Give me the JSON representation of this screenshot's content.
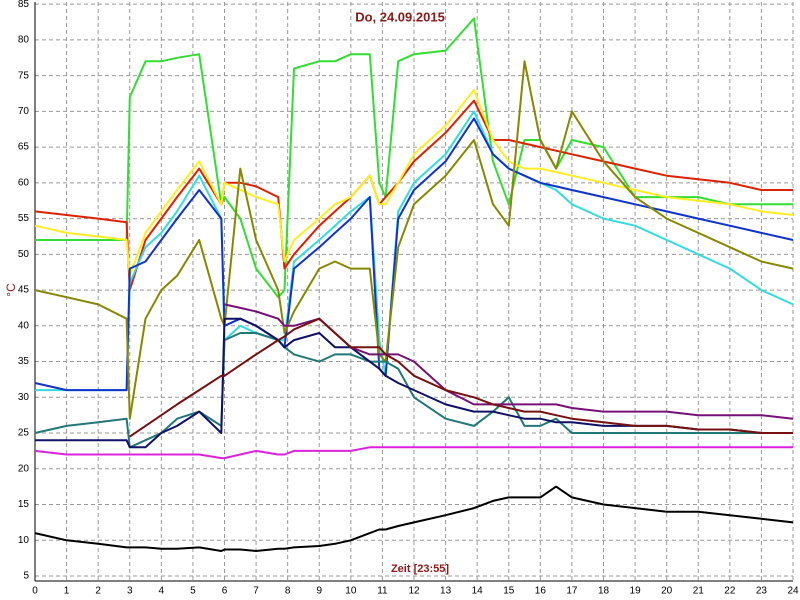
{
  "chart_data": {
    "type": "line",
    "title": "Do, 24.09.2015",
    "x_label": "Zeit [23:55]",
    "y_label": "°C",
    "x": [
      0,
      1,
      2,
      2.9,
      3,
      3.5,
      4,
      4.5,
      5.2,
      5.9,
      6,
      6.5,
      7,
      7.7,
      7.9,
      8.2,
      9,
      9.5,
      10,
      10.6,
      10.9,
      11.1,
      11.5,
      12,
      13,
      13.9,
      14.5,
      15,
      15.5,
      16,
      16.5,
      17,
      18,
      19,
      20,
      21,
      22,
      23,
      24
    ],
    "xlim": [
      0,
      24
    ],
    "xticks": [
      0,
      1,
      2,
      3,
      4,
      5,
      6,
      7,
      8,
      9,
      10,
      11,
      12,
      13,
      14,
      15,
      16,
      17,
      18,
      19,
      20,
      21,
      22,
      23,
      24
    ],
    "ylim": [
      4.3,
      85.3
    ],
    "yticks": [
      5,
      10,
      15,
      20,
      25,
      30,
      35,
      40,
      45,
      50,
      55,
      60,
      65,
      70,
      75,
      80,
      85
    ],
    "grid": true,
    "series": [
      {
        "color": "#33dd33",
        "values": [
          52,
          52,
          52,
          52,
          72,
          77,
          77,
          77.5,
          78,
          57,
          58,
          55,
          48,
          44,
          45,
          76,
          77,
          77,
          78,
          78,
          60,
          58,
          77,
          78,
          78.5,
          83,
          63,
          57,
          66,
          66,
          62,
          66,
          65,
          58,
          58,
          58,
          57,
          57,
          57
        ]
      },
      {
        "color": "#dd2200",
        "values": [
          56,
          55.5,
          55,
          54.5,
          45,
          52,
          55,
          58,
          62,
          57,
          60,
          60,
          59.5,
          58,
          48,
          50,
          54,
          56,
          58,
          61,
          57,
          58,
          60,
          63,
          67,
          71.5,
          66,
          66,
          65.5,
          65,
          64.5,
          64,
          63,
          62,
          61,
          60.5,
          60,
          59,
          59
        ]
      },
      {
        "color": "#ffee22",
        "values": [
          54,
          53,
          52.5,
          52,
          47,
          53,
          56,
          59,
          63,
          57,
          60,
          59,
          58,
          57,
          49,
          52,
          55,
          57,
          58,
          61,
          57,
          57,
          60,
          64,
          68,
          73,
          66,
          63,
          62,
          62,
          61.5,
          61,
          60,
          59,
          58,
          57.5,
          57,
          56,
          55.5
        ]
      },
      {
        "color": "#33dddd",
        "values": [
          31,
          31,
          31,
          31,
          46,
          51,
          53,
          56,
          61,
          55,
          38,
          40,
          39,
          38,
          38,
          49,
          52,
          54,
          56,
          58,
          38,
          33,
          56,
          60,
          64,
          70,
          64,
          62,
          61,
          60,
          59,
          57,
          55,
          54,
          52,
          50,
          48,
          45,
          43
        ]
      },
      {
        "color": "#1133cc",
        "values": [
          32,
          31,
          31,
          31,
          48,
          49,
          52,
          55,
          59,
          55,
          40,
          41,
          40,
          38,
          37,
          48,
          51,
          53,
          55,
          58,
          34,
          33,
          55,
          59,
          63,
          69,
          64,
          62,
          61,
          60,
          59.5,
          59,
          58,
          57,
          56,
          55,
          54,
          53,
          52
        ]
      },
      {
        "color": "#888800",
        "values": [
          45,
          44,
          43,
          41,
          27,
          41,
          45,
          47,
          52,
          41,
          40,
          62,
          52,
          45,
          39,
          42,
          48,
          49,
          48,
          48,
          36,
          35,
          51,
          57,
          61,
          66,
          57,
          54,
          77,
          66,
          62,
          70,
          63,
          58,
          55,
          53,
          51,
          49,
          48
        ]
      },
      {
        "color": "#227777",
        "values": [
          25,
          26,
          26.5,
          27,
          23,
          24,
          25,
          27,
          28,
          26,
          38,
          39,
          39,
          38,
          37,
          36,
          35,
          36,
          36,
          35,
          35,
          35,
          34,
          30,
          27,
          26,
          28,
          30,
          26,
          26,
          27,
          25,
          25,
          25,
          25,
          25,
          25,
          25,
          25
        ]
      },
      {
        "color": "#111166",
        "values": [
          24,
          24,
          24,
          24,
          23,
          23,
          25,
          26,
          28,
          25,
          41,
          41,
          40,
          38,
          37,
          38,
          39,
          37,
          37,
          35,
          34,
          33,
          32,
          31,
          29,
          28,
          28,
          27.5,
          27,
          27,
          26.5,
          26.5,
          26,
          26,
          26,
          25.5,
          25.5,
          25,
          25
        ]
      },
      {
        "color": "#771177",
        "values": [
          null,
          null,
          null,
          null,
          null,
          null,
          null,
          null,
          null,
          null,
          43,
          42.5,
          42,
          41,
          40,
          40,
          41,
          39,
          37,
          36,
          36,
          36,
          36,
          35,
          31,
          29,
          29,
          29,
          29,
          29,
          29,
          28.5,
          28,
          28,
          28,
          27.5,
          27.5,
          27.5,
          27
        ]
      },
      {
        "color": "#771111",
        "values": [
          null,
          null,
          null,
          null,
          24.5,
          26,
          27.5,
          29,
          31,
          33,
          33,
          34.5,
          36,
          38,
          38.5,
          39.5,
          41,
          39,
          37,
          37,
          37,
          36,
          35,
          33,
          31,
          30,
          29,
          28.5,
          28,
          28,
          27.5,
          27,
          26.5,
          26,
          26,
          25.5,
          25.5,
          25,
          25
        ]
      },
      {
        "color": "#dd22dd",
        "values": [
          22.5,
          22,
          22,
          22,
          22,
          22,
          22,
          22,
          22,
          21.5,
          21.5,
          22,
          22.5,
          22,
          22,
          22.5,
          22.5,
          22.5,
          22.5,
          23,
          23,
          23,
          23,
          23,
          23,
          23,
          23,
          23,
          23,
          23,
          23,
          23,
          23,
          23,
          23,
          23,
          23,
          23,
          23
        ]
      },
      {
        "color": "#000000",
        "values": [
          11,
          10,
          9.5,
          9,
          9,
          9,
          8.8,
          8.8,
          9,
          8.5,
          8.7,
          8.7,
          8.5,
          8.8,
          8.8,
          9,
          9.2,
          9.5,
          10,
          11,
          11.5,
          11.5,
          12,
          12.5,
          13.5,
          14.5,
          15.5,
          16,
          16,
          16,
          17.5,
          16,
          15,
          14.5,
          14,
          14,
          13.5,
          13,
          12.5
        ]
      }
    ]
  }
}
